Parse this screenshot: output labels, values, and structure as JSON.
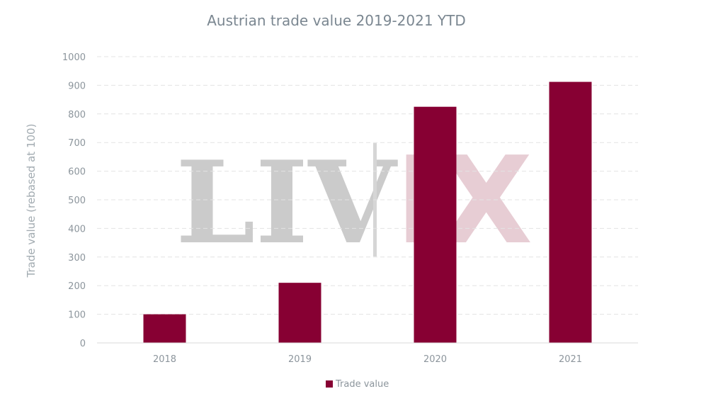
{
  "chart_data": {
    "type": "bar",
    "title": "Austrian trade value 2019-2021 YTD",
    "xlabel": "",
    "ylabel": "Trade value (rebased at 100)",
    "categories": [
      "2018",
      "2019",
      "2020",
      "2021"
    ],
    "series": [
      {
        "name": "Trade value",
        "values": [
          100,
          210,
          825,
          912
        ],
        "color": "#870033"
      }
    ],
    "ylim": [
      0,
      1000
    ],
    "yticks": [
      0,
      100,
      200,
      300,
      400,
      500,
      600,
      700,
      800,
      900,
      1000
    ],
    "grid": true,
    "legend": "bottom-center"
  },
  "watermark": {
    "left": "LIV",
    "right": "IX"
  }
}
